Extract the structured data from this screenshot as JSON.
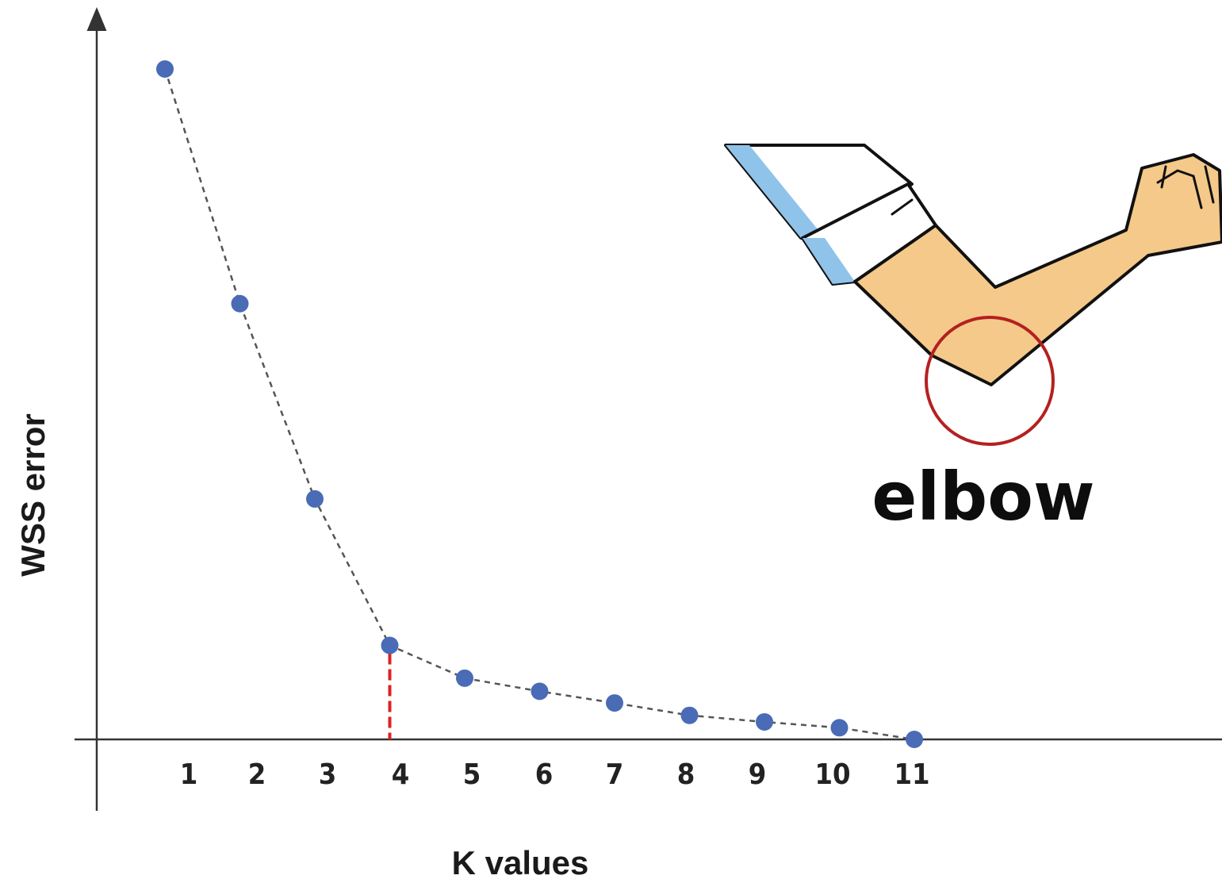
{
  "chart_data": {
    "type": "line",
    "title": "",
    "xlabel": "K values",
    "ylabel": "WSS error",
    "x": [
      1,
      2,
      3,
      4,
      5,
      6,
      7,
      8,
      9,
      10,
      11
    ],
    "series": [
      {
        "values": [
          100,
          67.8,
          41,
          20.9,
          16.4,
          14.6,
          13,
          11.3,
          10.4,
          9.6,
          8
        ]
      }
    ],
    "xlim": [
      0,
      12.5
    ],
    "ylim": [
      8,
      100
    ],
    "grid": false,
    "legend": "none",
    "marker_color": "#4a6bb5",
    "line_style": "dashed",
    "line_color": "#555555",
    "optimal_k": 4,
    "optimal_marker_color": "#e02020",
    "annotation": {
      "text": "elbow",
      "circle_color": "#b52020"
    },
    "illustration": {
      "name": "bent-arm-illustration",
      "skin_color": "#f4c98a",
      "sleeve_color": "#8fc3ea"
    }
  }
}
